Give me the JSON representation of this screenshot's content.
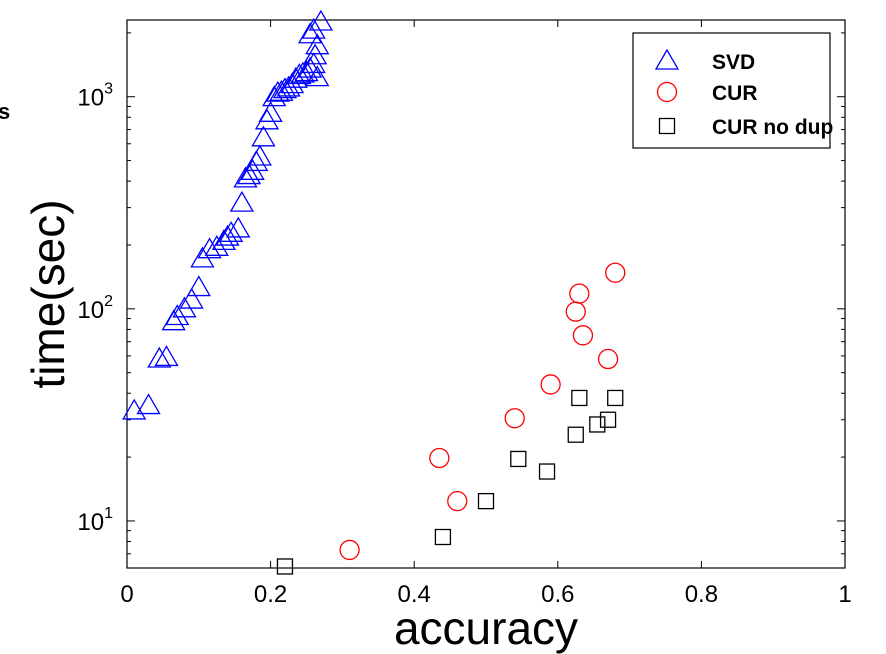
{
  "chart_data": {
    "type": "scatter",
    "xlabel": "accuracy",
    "ylabel": "time(sec)",
    "xlim": [
      0,
      1
    ],
    "ylim": [
      6,
      2300
    ],
    "yscale": "log",
    "x_ticks": [
      0,
      0.2,
      0.4,
      0.6,
      0.8,
      1
    ],
    "x_tick_labels": [
      "0",
      "0.2",
      "0.4",
      "0.6",
      "0.8",
      "1"
    ],
    "y_ticks": [
      10,
      100,
      1000
    ],
    "y_tick_labels": [
      {
        "base": "10",
        "exp": "1"
      },
      {
        "base": "10",
        "exp": "2"
      },
      {
        "base": "10",
        "exp": "3"
      }
    ],
    "grid": false,
    "legend_position": "top-right",
    "stray_text": "s",
    "series": [
      {
        "name": "SVD",
        "marker": "triangle",
        "color": "#0000ff",
        "points": [
          [
            0.01,
            33
          ],
          [
            0.03,
            35
          ],
          [
            0.045,
            58
          ],
          [
            0.055,
            59
          ],
          [
            0.065,
            87
          ],
          [
            0.07,
            92
          ],
          [
            0.08,
            100
          ],
          [
            0.09,
            110
          ],
          [
            0.1,
            126
          ],
          [
            0.105,
            172
          ],
          [
            0.115,
            190
          ],
          [
            0.125,
            195
          ],
          [
            0.135,
            208
          ],
          [
            0.14,
            218
          ],
          [
            0.145,
            227
          ],
          [
            0.155,
            238
          ],
          [
            0.16,
            315
          ],
          [
            0.165,
            410
          ],
          [
            0.17,
            425
          ],
          [
            0.175,
            445
          ],
          [
            0.18,
            490
          ],
          [
            0.185,
            520
          ],
          [
            0.19,
            640
          ],
          [
            0.195,
            770
          ],
          [
            0.2,
            835
          ],
          [
            0.205,
            990
          ],
          [
            0.21,
            1040
          ],
          [
            0.215,
            1050
          ],
          [
            0.22,
            1080
          ],
          [
            0.225,
            1100
          ],
          [
            0.23,
            1140
          ],
          [
            0.235,
            1210
          ],
          [
            0.24,
            1260
          ],
          [
            0.245,
            1280
          ],
          [
            0.25,
            1300
          ],
          [
            0.255,
            1350
          ],
          [
            0.26,
            1420
          ],
          [
            0.262,
            1560
          ],
          [
            0.265,
            1740
          ],
          [
            0.255,
            1960
          ],
          [
            0.26,
            2060
          ],
          [
            0.27,
            2250
          ],
          [
            0.265,
            1230
          ]
        ]
      },
      {
        "name": "CUR",
        "marker": "circle",
        "color": "#ff0000",
        "points": [
          [
            0.31,
            7.3
          ],
          [
            0.435,
            19.8
          ],
          [
            0.46,
            12.4
          ],
          [
            0.54,
            30.5
          ],
          [
            0.59,
            44
          ],
          [
            0.625,
            97
          ],
          [
            0.63,
            118
          ],
          [
            0.635,
            75
          ],
          [
            0.67,
            58
          ],
          [
            0.68,
            148
          ]
        ]
      },
      {
        "name": "CUR no dup",
        "marker": "square",
        "color": "#000000",
        "points": [
          [
            0.22,
            6.1
          ],
          [
            0.44,
            8.4
          ],
          [
            0.5,
            12.4
          ],
          [
            0.545,
            19.6
          ],
          [
            0.585,
            17.1
          ],
          [
            0.625,
            25.5
          ],
          [
            0.63,
            38
          ],
          [
            0.655,
            28.5
          ],
          [
            0.67,
            30
          ],
          [
            0.68,
            38
          ]
        ]
      }
    ]
  }
}
